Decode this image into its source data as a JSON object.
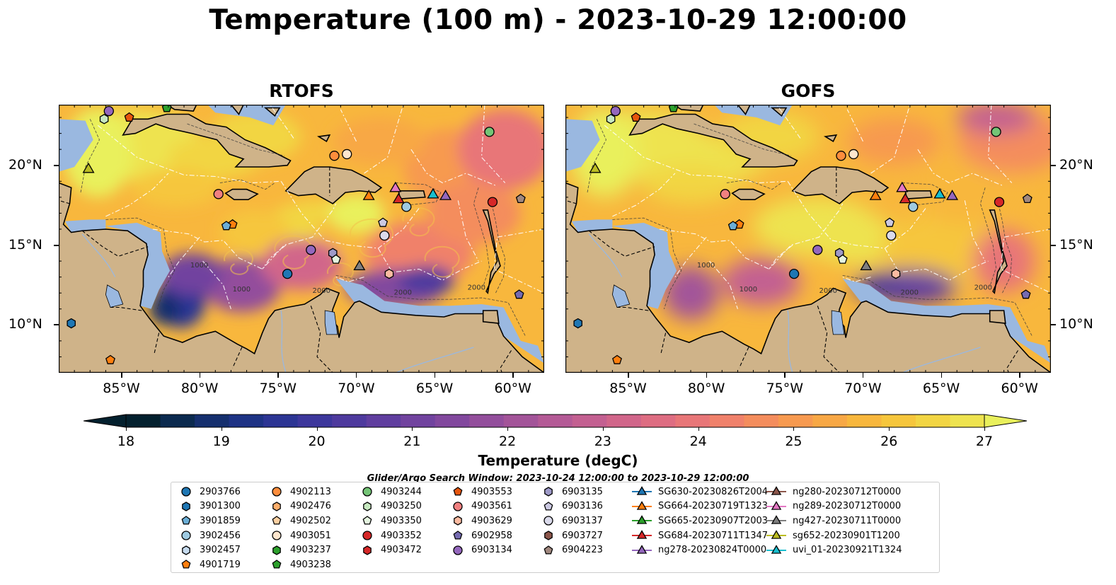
{
  "title": "Temperature (100 m) - 2023-10-29 12:00:00",
  "panels": [
    {
      "title": "RTOFS",
      "variant": "rtofs"
    },
    {
      "title": "GOFS",
      "variant": "gofs"
    }
  ],
  "lon_ticks": [
    "85°W",
    "80°W",
    "75°W",
    "70°W",
    "65°W",
    "60°W"
  ],
  "lat_ticks": [
    "20°N",
    "15°N",
    "10°N"
  ],
  "contour_labels": [
    "1000",
    "2000"
  ],
  "colorbar": {
    "label": "Temperature (degC)",
    "min": 18,
    "max": 27,
    "extend": "both",
    "ticks": [
      "18",
      "19",
      "20",
      "21",
      "22",
      "23",
      "24",
      "25",
      "26",
      "27"
    ],
    "colors": [
      "#03202e",
      "#0b2a4f",
      "#152f6e",
      "#1e3385",
      "#2c3594",
      "#3d379c",
      "#4e3a9e",
      "#603e9f",
      "#71439f",
      "#82489e",
      "#934e9c",
      "#a35499",
      "#b45a96",
      "#c36091",
      "#d1668a",
      "#de6d82",
      "#e87678",
      "#f0816b",
      "#f48d5d",
      "#f79a50",
      "#f8a845",
      "#f8b73d",
      "#f6c63c",
      "#f2d543",
      "#eee34f",
      "#e9f05c"
    ]
  },
  "search_window": "Glider/Argo Search Window: 2023-10-24 12:00:00 to 2023-10-29 12:00:00",
  "legend": [
    [
      {
        "label": "2903766",
        "marker": "circle",
        "color": "#1f77b4"
      },
      {
        "label": "3901300",
        "marker": "hexagon",
        "color": "#1f77b4"
      },
      {
        "label": "3901859",
        "marker": "pentagon",
        "color": "#6baed6"
      },
      {
        "label": "3902456",
        "marker": "circle",
        "color": "#9ecae1"
      },
      {
        "label": "3902457",
        "marker": "hexagon",
        "color": "#c6dbef"
      },
      {
        "label": "4901719",
        "marker": "pentagon",
        "color": "#ff7f0e"
      }
    ],
    [
      {
        "label": "4902113",
        "marker": "circle",
        "color": "#fd8d3c"
      },
      {
        "label": "4902476",
        "marker": "hexagon",
        "color": "#fdae6b"
      },
      {
        "label": "4902502",
        "marker": "pentagon",
        "color": "#fdd0a2"
      },
      {
        "label": "4903051",
        "marker": "circle",
        "color": "#fee6ce"
      },
      {
        "label": "4903237",
        "marker": "hexagon",
        "color": "#2ca02c"
      },
      {
        "label": "4903238",
        "marker": "pentagon",
        "color": "#2ca02c"
      }
    ],
    [
      {
        "label": "4903244",
        "marker": "circle",
        "color": "#74c476"
      },
      {
        "label": "4903250",
        "marker": "hexagon",
        "color": "#c7e9c0"
      },
      {
        "label": "4903350",
        "marker": "pentagon",
        "color": "#e5f5e0"
      },
      {
        "label": "4903352",
        "marker": "circle",
        "color": "#d62728"
      },
      {
        "label": "4903472",
        "marker": "hexagon",
        "color": "#d62728"
      }
    ],
    [
      {
        "label": "4903553",
        "marker": "pentagon",
        "color": "#e6550d"
      },
      {
        "label": "4903561",
        "marker": "circle",
        "color": "#f08080"
      },
      {
        "label": "4903629",
        "marker": "hexagon",
        "color": "#fcbba1"
      },
      {
        "label": "6902958",
        "marker": "pentagon",
        "color": "#756bb1"
      },
      {
        "label": "6903134",
        "marker": "circle",
        "color": "#9467bd"
      }
    ],
    [
      {
        "label": "6903135",
        "marker": "hexagon",
        "color": "#9e9ac8"
      },
      {
        "label": "6903136",
        "marker": "pentagon",
        "color": "#cbc9e2"
      },
      {
        "label": "6903137",
        "marker": "circle",
        "color": "#dadaeb"
      },
      {
        "label": "6903727",
        "marker": "hexagon",
        "color": "#8c564b"
      },
      {
        "label": "6904223",
        "marker": "pentagon",
        "color": "#a1887f"
      }
    ],
    [
      {
        "label": "SG630-20230826T2004",
        "marker": "triangle",
        "color": "#1f77b4"
      },
      {
        "label": "SG664-20230719T1323",
        "marker": "triangle",
        "color": "#ff7f0e"
      },
      {
        "label": "SG665-20230907T2003",
        "marker": "triangle",
        "color": "#2ca02c"
      },
      {
        "label": "SG684-20230711T1347",
        "marker": "triangle",
        "color": "#d62728"
      },
      {
        "label": "ng278-20230824T0000",
        "marker": "triangle",
        "color": "#9467bd"
      }
    ],
    [
      {
        "label": "ng280-20230712T0000",
        "marker": "triangle",
        "color": "#8c564b"
      },
      {
        "label": "ng289-20230712T0000",
        "marker": "triangle",
        "color": "#e377c2"
      },
      {
        "label": "ng427-20230711T0000",
        "marker": "triangle",
        "color": "#7f7f7f"
      },
      {
        "label": "sg652-20230901T1200",
        "marker": "triangle",
        "color": "#bcbd22"
      },
      {
        "label": "uvi_01-20230921T1324",
        "marker": "triangle",
        "color": "#17becf"
      }
    ]
  ],
  "colors": {
    "land": "#cfb389",
    "shelf": "#9ab8e0",
    "deep": "#082230"
  }
}
